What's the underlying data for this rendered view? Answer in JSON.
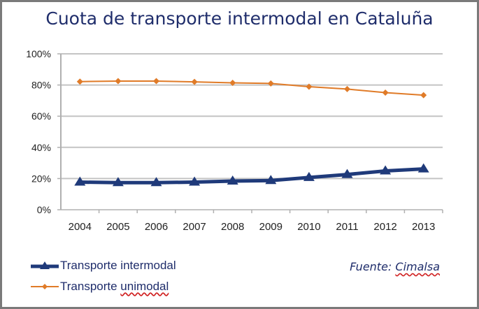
{
  "chart_data": {
    "type": "line",
    "title": "Cuota de transporte intermodal en Cataluña",
    "categories": [
      "2004",
      "2005",
      "2006",
      "2007",
      "2008",
      "2009",
      "2010",
      "2011",
      "2012",
      "2013"
    ],
    "yticks": [
      "0%",
      "20%",
      "40%",
      "60%",
      "80%",
      "100%"
    ],
    "ylim": [
      0,
      100
    ],
    "grid": true,
    "legend_position": "bottom-left",
    "series": [
      {
        "name": "Transporte intermodal",
        "color": "#1f3a7a",
        "marker": "triangle",
        "values": [
          17.7,
          17.4,
          17.4,
          17.7,
          18.4,
          18.7,
          20.7,
          22.6,
          24.9,
          26.2
        ]
      },
      {
        "name": "Transporte unimodal",
        "color": "#e07b28",
        "marker": "diamond",
        "values": [
          82.2,
          82.5,
          82.5,
          82.0,
          81.4,
          81.0,
          78.9,
          77.4,
          75.1,
          73.5
        ]
      }
    ],
    "source_label": "Fuente: ",
    "source_name": "Cimalsa"
  },
  "legend": {
    "unimodal_prefix": "Transporte ",
    "unimodal_suffix": "unimodal"
  }
}
